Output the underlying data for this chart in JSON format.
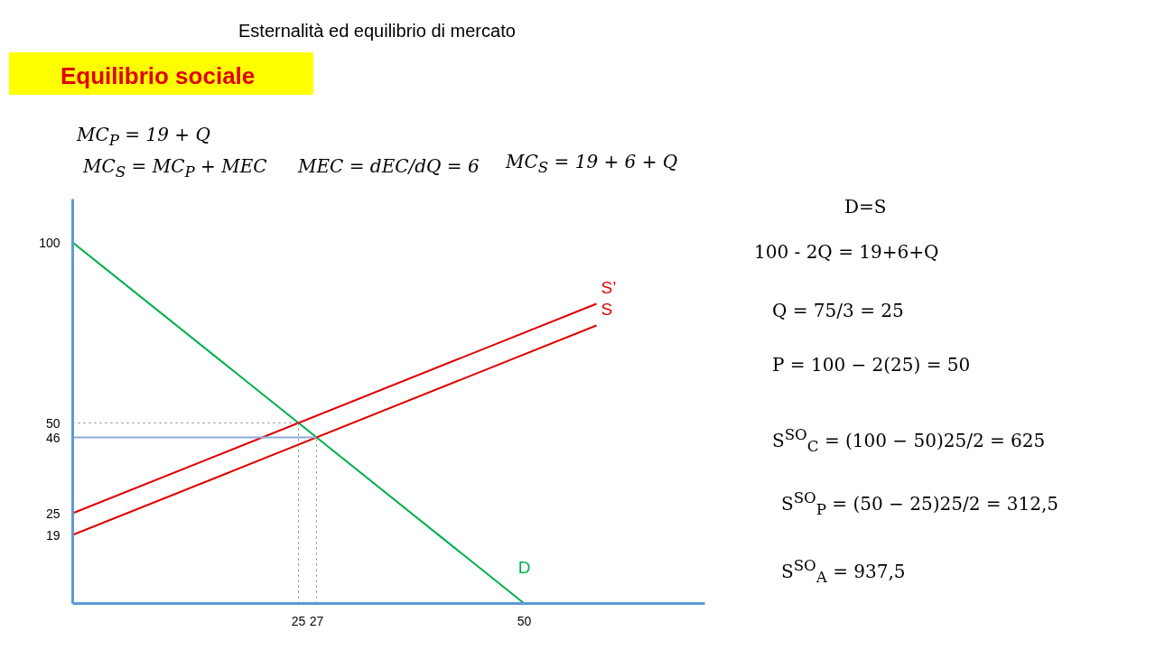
{
  "chart_data": {
    "type": "line",
    "title": "Esternalità ed equilibrio di mercato",
    "subtitle": "Equilibrio sociale",
    "xlim": [
      0,
      70
    ],
    "ylim": [
      0,
      112
    ],
    "xticks": [
      25,
      27,
      50
    ],
    "yticks": [
      19,
      25,
      46,
      50,
      100
    ],
    "grid": false,
    "series": [
      {
        "name": "D",
        "color": "#00b050",
        "x": [
          0,
          50
        ],
        "values": [
          100,
          0
        ],
        "line_style": "solid"
      },
      {
        "name": "S",
        "color": "#e00000",
        "x": [
          0,
          58
        ],
        "values": [
          19,
          77
        ],
        "line_style": "solid"
      },
      {
        "name": "S’",
        "color": "#e00000",
        "x": [
          0,
          58
        ],
        "values": [
          25,
          83
        ],
        "line_style": "solid"
      },
      {
        "color": "#808080",
        "x": [
          0,
          25
        ],
        "values": [
          50,
          50
        ],
        "line_style": "dotted"
      },
      {
        "color": "#808080",
        "x": [
          25,
          25
        ],
        "values": [
          0,
          50
        ],
        "line_style": "dotted"
      },
      {
        "color": "#8eaadb",
        "x": [
          0,
          27
        ],
        "values": [
          46,
          46
        ],
        "line_style": "solid"
      },
      {
        "color": "#808080",
        "x": [
          27,
          27
        ],
        "values": [
          0,
          46
        ],
        "line_style": "dotted"
      }
    ],
    "annotations": [
      "MC$_{P}$ = 19 + Q",
      "MC$_{S}$ = MC$_{P}$ + MEC",
      "MEC = dEC/dQ = 6",
      "MC$_{S}$ = 19 + 6 + Q",
      "D=S",
      "100 - 2Q = 19+6+Q",
      "Q = 75/3 = 25",
      "P = 100 − 2(25) = 50",
      "S$^{SO}$$_{C}$ = (100 − 50)25/2 = 625",
      "S$^{SO}$$_{P}$ = (50 − 25)25/2 = 312,5",
      "S$^{SO}$$_{A}$ = 937,5"
    ]
  }
}
